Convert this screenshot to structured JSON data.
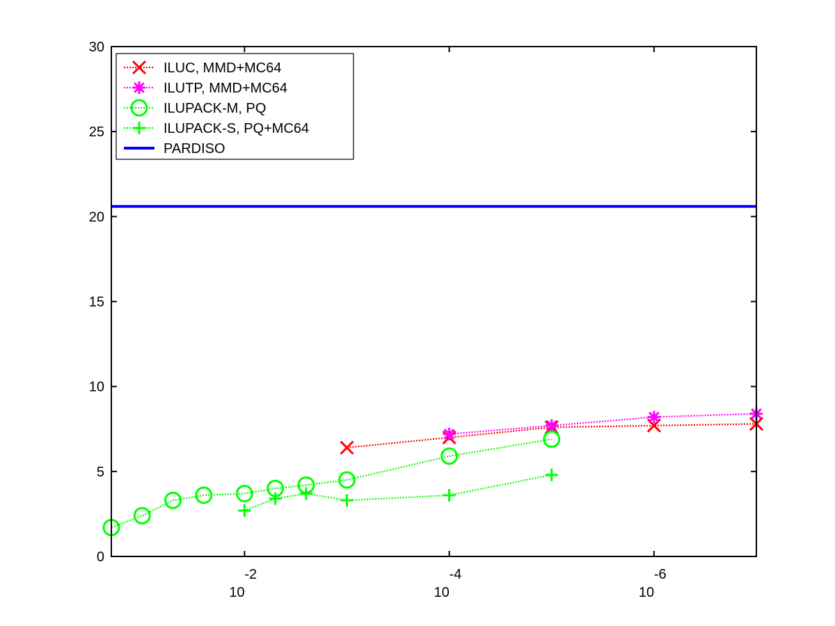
{
  "chart_data": {
    "type": "line",
    "title": "",
    "xlabel": "",
    "ylabel": "",
    "x_scale": "log",
    "x_reversed": true,
    "xlim": [
      0.2,
      1e-07
    ],
    "ylim": [
      0,
      30
    ],
    "yticks": [
      0,
      5,
      10,
      15,
      20,
      25,
      30
    ],
    "xticks": [
      {
        "value": 0.01,
        "base": "10",
        "exponent": "-2"
      },
      {
        "value": 0.0001,
        "base": "10",
        "exponent": "-4"
      },
      {
        "value": 1e-06,
        "base": "10",
        "exponent": "-6"
      }
    ],
    "grid": false,
    "legend_position": "top-left",
    "series": [
      {
        "name": "ILUC, MMD+MC64",
        "color": "#ff0000",
        "marker": "x",
        "line_style": "dotted",
        "x": [
          0.001,
          0.0001,
          1e-05,
          1e-06,
          1e-07
        ],
        "y": [
          6.4,
          7.0,
          7.6,
          7.7,
          7.8
        ]
      },
      {
        "name": "ILUTP, MMD+MC64",
        "color": "#ff00ff",
        "marker": "star",
        "line_style": "dotted",
        "x": [
          0.0001,
          1e-05,
          1e-06,
          1e-07
        ],
        "y": [
          7.2,
          7.7,
          8.2,
          8.4
        ]
      },
      {
        "name": "ILUPACK-M, PQ",
        "color": "#00ff00",
        "marker": "circle",
        "line_style": "dotted",
        "x": [
          0.2,
          0.1,
          0.05,
          0.025,
          0.01,
          0.005,
          0.0025,
          0.001,
          0.0001,
          1e-05
        ],
        "y": [
          1.7,
          2.4,
          3.3,
          3.6,
          3.7,
          4.0,
          4.2,
          4.5,
          5.9,
          6.9
        ]
      },
      {
        "name": "ILUPACK-S, PQ+MC64",
        "color": "#00ff00",
        "marker": "plus",
        "line_style": "dotted",
        "x": [
          0.01,
          0.005,
          0.0025,
          0.001,
          0.0001,
          1e-05
        ],
        "y": [
          2.7,
          3.4,
          3.7,
          3.3,
          3.6,
          4.8
        ]
      },
      {
        "name": "PARDISO",
        "color": "#0000ff",
        "marker": "none",
        "line_style": "solid",
        "x": [
          0.2,
          1e-07
        ],
        "y": [
          20.6,
          20.6
        ]
      }
    ]
  }
}
